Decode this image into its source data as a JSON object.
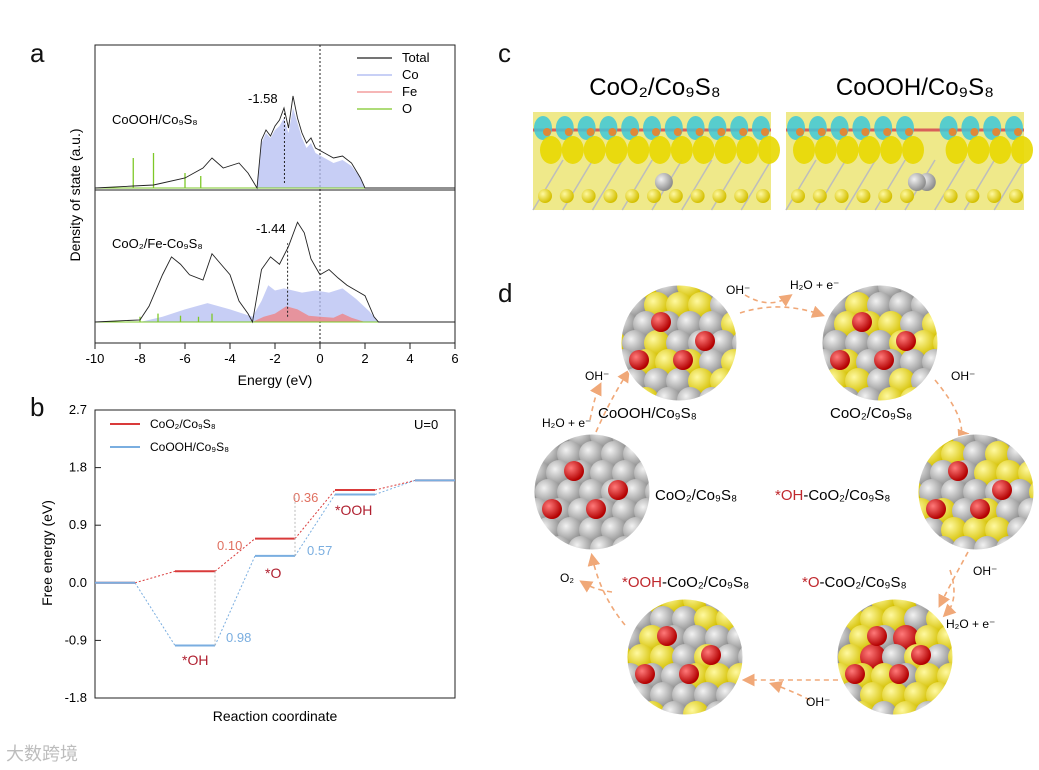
{
  "panels": {
    "a": "a",
    "b": "b",
    "c": "c",
    "d": "d"
  },
  "chart_data": [
    {
      "type": "area",
      "panel": "a",
      "title": "",
      "xlabel": "Energy (eV)",
      "ylabel": "Density of state (a.u.)",
      "xlim": [
        -10,
        6
      ],
      "xticks": [
        "-10",
        "-8",
        "-6",
        "-4",
        "-2",
        "0",
        "2",
        "4",
        "6"
      ],
      "legend": [
        {
          "name": "Total",
          "color": "#222222"
        },
        {
          "name": "Co",
          "color": "#a8b4f0"
        },
        {
          "name": "Fe",
          "color": "#f08a8a"
        },
        {
          "name": "O",
          "color": "#7ec828"
        }
      ],
      "subplots": [
        {
          "label": "CoOOH/Co₉S₈",
          "annotation": "-1.58",
          "d_band_center": -1.58,
          "co_curve": [
            [
              -2.8,
              0
            ],
            [
              -2.6,
              0.45
            ],
            [
              -2.4,
              0.55
            ],
            [
              -2.2,
              0.5
            ],
            [
              -2.0,
              0.58
            ],
            [
              -1.8,
              0.62
            ],
            [
              -1.6,
              0.7
            ],
            [
              -1.4,
              0.55
            ],
            [
              -1.2,
              0.8
            ],
            [
              -1.0,
              0.65
            ],
            [
              -0.8,
              0.5
            ],
            [
              -0.6,
              0.4
            ],
            [
              -0.4,
              0.45
            ],
            [
              -0.2,
              0.35
            ],
            [
              0.2,
              0.3
            ],
            [
              0.6,
              0.25
            ],
            [
              1.0,
              0.28
            ],
            [
              1.4,
              0.22
            ],
            [
              1.8,
              0.1
            ],
            [
              2.0,
              0
            ]
          ],
          "total_curve": [
            [
              -10,
              0
            ],
            [
              -8.3,
              0.02
            ],
            [
              -7.4,
              0.03
            ],
            [
              -7,
              0.05
            ],
            [
              -6,
              0.1
            ],
            [
              -5.2,
              0.2
            ],
            [
              -4.8,
              0.3
            ],
            [
              -4.3,
              0.2
            ],
            [
              -3.6,
              0.25
            ],
            [
              -3.2,
              0.15
            ],
            [
              -2.8,
              0
            ],
            [
              -2.6,
              0.48
            ],
            [
              -2.4,
              0.58
            ],
            [
              -2.2,
              0.52
            ],
            [
              -2.0,
              0.62
            ],
            [
              -1.8,
              0.68
            ],
            [
              -1.6,
              0.8
            ],
            [
              -1.4,
              0.6
            ],
            [
              -1.2,
              0.92
            ],
            [
              -1.0,
              0.7
            ],
            [
              -0.8,
              0.55
            ],
            [
              -0.6,
              0.45
            ],
            [
              -0.4,
              0.5
            ],
            [
              -0.2,
              0.4
            ],
            [
              0.2,
              0.35
            ],
            [
              0.6,
              0.3
            ],
            [
              1.0,
              0.32
            ],
            [
              1.4,
              0.25
            ],
            [
              1.8,
              0.1
            ],
            [
              2.0,
              0
            ],
            [
              6,
              0
            ]
          ],
          "o_spikes": [
            [
              -8.3,
              0.3
            ],
            [
              -7.4,
              0.35
            ],
            [
              -6,
              0.15
            ],
            [
              -5.3,
              0.12
            ]
          ]
        },
        {
          "label": "CoO₂/Fe-Co₉S₈",
          "annotation": "-1.44",
          "d_band_center": -1.44,
          "co_curve": [
            [
              -8,
              0
            ],
            [
              -7,
              0.05
            ],
            [
              -6,
              0.12
            ],
            [
              -5,
              0.18
            ],
            [
              -4,
              0.12
            ],
            [
              -3,
              0.05
            ],
            [
              -2.6,
              0.2
            ],
            [
              -2.3,
              0.35
            ],
            [
              -2.0,
              0.3
            ],
            [
              -1.6,
              0.32
            ],
            [
              -1.2,
              0.3
            ],
            [
              -0.8,
              0.28
            ],
            [
              -0.2,
              0.3
            ],
            [
              0.4,
              0.28
            ],
            [
              1.0,
              0.32
            ],
            [
              1.6,
              0.22
            ],
            [
              2.2,
              0.1
            ],
            [
              2.6,
              0
            ]
          ],
          "fe_curve": [
            [
              -3,
              0
            ],
            [
              -2.5,
              0.05
            ],
            [
              -2.0,
              0.08
            ],
            [
              -1.5,
              0.15
            ],
            [
              -1.0,
              0.12
            ],
            [
              -0.5,
              0.06
            ],
            [
              0,
              0.05
            ],
            [
              0.6,
              0.04
            ],
            [
              1.0,
              0.08
            ],
            [
              1.4,
              0.04
            ],
            [
              2.0,
              0
            ]
          ],
          "total_curve": [
            [
              -10,
              0
            ],
            [
              -8,
              0.02
            ],
            [
              -7.6,
              0.15
            ],
            [
              -7,
              0.45
            ],
            [
              -6.6,
              0.62
            ],
            [
              -6.2,
              0.55
            ],
            [
              -5.8,
              0.45
            ],
            [
              -5.2,
              0.4
            ],
            [
              -4.8,
              0.65
            ],
            [
              -4.4,
              0.55
            ],
            [
              -4.0,
              0.45
            ],
            [
              -3.6,
              0.2
            ],
            [
              -3.2,
              0.08
            ],
            [
              -3.0,
              0.0
            ],
            [
              -2.6,
              0.5
            ],
            [
              -2.2,
              0.62
            ],
            [
              -1.8,
              0.55
            ],
            [
              -1.4,
              0.72
            ],
            [
              -1.0,
              0.95
            ],
            [
              -0.7,
              0.85
            ],
            [
              -0.4,
              0.6
            ],
            [
              0,
              0.45
            ],
            [
              0.4,
              0.5
            ],
            [
              0.8,
              0.42
            ],
            [
              1.2,
              0.35
            ],
            [
              1.6,
              0.3
            ],
            [
              2.0,
              0.25
            ],
            [
              2.4,
              0.05
            ],
            [
              2.6,
              0
            ],
            [
              6,
              0
            ]
          ],
          "o_spikes": [
            [
              -8,
              0.05
            ],
            [
              -7.2,
              0.08
            ],
            [
              -6.2,
              0.06
            ],
            [
              -5.4,
              0.05
            ],
            [
              -4.8,
              0.08
            ]
          ]
        }
      ]
    },
    {
      "type": "line",
      "panel": "b",
      "title": "",
      "annotation": "U=0",
      "xlabel": "Reaction coordinate",
      "ylabel": "Free energy (eV)",
      "ylim": [
        -1.8,
        2.7
      ],
      "yticks": [
        "2.7",
        "1.8",
        "0.9",
        "0.0",
        "-0.9",
        "-1.8"
      ],
      "series": [
        {
          "name": "CoO₂/Co₉S₈",
          "color": "#d93a3a",
          "values": [
            0.0,
            0.18,
            0.69,
            1.45,
            1.6
          ],
          "step_labels": [
            "0.10",
            "0.36"
          ]
        },
        {
          "name": "CoOOH/Co₉S₈",
          "color": "#7aaee0",
          "values": [
            0.0,
            -0.98,
            0.42,
            1.38,
            1.6
          ],
          "step_labels": [
            "0.98",
            "0.57"
          ]
        }
      ],
      "intermediate_labels": [
        "*OH",
        "*O",
        "*OOH"
      ]
    }
  ],
  "panel_c": {
    "labels": [
      "CoO₂/Co₉S₈",
      "CoOOH/Co₉S₈"
    ]
  },
  "panel_d": {
    "nodes": [
      {
        "label": "CoOOH/Co₉S₈",
        "prefix": ""
      },
      {
        "label": "CoO₂/Co₉S₈",
        "prefix": ""
      },
      {
        "label": "-CoO₂/Co₉S₈",
        "prefix": "*OH"
      },
      {
        "label": "-CoO₂/Co₉S₈",
        "prefix": "*O"
      },
      {
        "label": "-CoO₂/Co₉S₈",
        "prefix": "*OOH"
      },
      {
        "label": "CoO₂/Co₉S₈",
        "prefix": ""
      }
    ],
    "reagents": {
      "oh": "OH⁻",
      "h2o_e": "H₂O + e⁻",
      "o2": "O₂"
    },
    "colors": {
      "arrow": "#f0a878",
      "highlight": "#c0282d",
      "s": "#f2e21e",
      "co": "#c8c8c8",
      "o": "#e01a1a",
      "h": "#ffffff"
    }
  },
  "watermark": "大数跨境"
}
